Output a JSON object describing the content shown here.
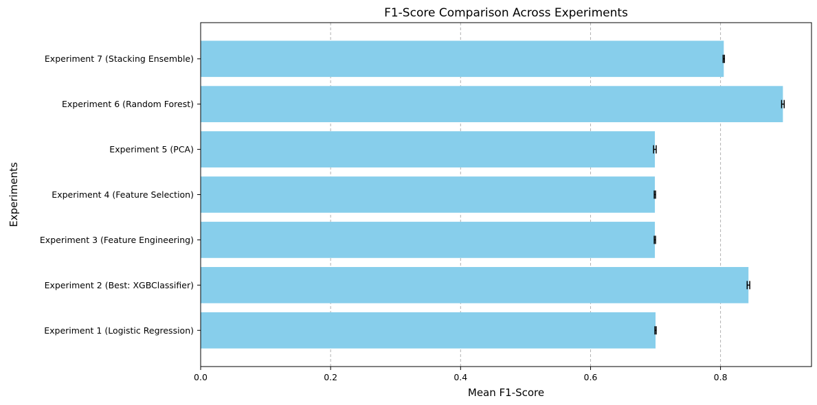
{
  "chart_data": {
    "type": "bar",
    "orientation": "horizontal",
    "title": "F1-Score Comparison Across Experiments",
    "xlabel": "Mean F1-Score",
    "ylabel": "Experiments",
    "xlim": [
      0,
      0.94
    ],
    "xticks": [
      0.0,
      0.2,
      0.4,
      0.6,
      0.8
    ],
    "xtick_labels": [
      "0.0",
      "0.2",
      "0.4",
      "0.6",
      "0.8"
    ],
    "grid": "x-dashed",
    "bar_color": "#87CEEB",
    "error_color": "#000000",
    "categories": [
      "Experiment 1 (Logistic Regression)",
      "Experiment 2 (Best: XGBClassifier)",
      "Experiment 3 (Feature Engineering)",
      "Experiment 4 (Feature Selection)",
      "Experiment 5 (PCA)",
      "Experiment 6 (Random Forest)",
      "Experiment 7 (Stacking Ensemble)"
    ],
    "values": [
      0.7,
      0.843,
      0.699,
      0.699,
      0.699,
      0.896,
      0.805
    ],
    "errors": [
      0.001,
      0.002,
      0.001,
      0.001,
      0.002,
      0.002,
      0.001
    ]
  }
}
